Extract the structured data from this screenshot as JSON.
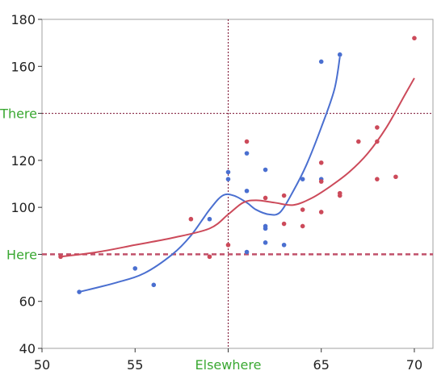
{
  "chart_data": {
    "type": "scatter",
    "xlim": [
      50,
      71
    ],
    "ylim": [
      40,
      180
    ],
    "x_ticks": [
      50,
      55,
      60,
      65,
      70
    ],
    "x_tick_labels": [
      "50",
      "55",
      "Elsewhere",
      "65",
      "70"
    ],
    "y_ticks": [
      40,
      60,
      80,
      100,
      120,
      140,
      160,
      180
    ],
    "y_tick_labels": [
      "40",
      "60",
      "Here",
      "100",
      "120",
      "There",
      "160",
      "180"
    ],
    "highlighted_tick_color": "#3aa832",
    "grid": false,
    "reference_lines": [
      {
        "axis": "x",
        "value": 60,
        "style": "dotted",
        "color": "#7a0e2e"
      },
      {
        "axis": "y",
        "value": 140,
        "style": "dotted",
        "color": "#7a0e2e"
      },
      {
        "axis": "y",
        "value": 80,
        "style": "dashed",
        "color": "#c0506a"
      }
    ],
    "series": [
      {
        "color": "#4a6fd0",
        "points": [
          [
            52,
            64
          ],
          [
            55,
            74
          ],
          [
            56,
            67
          ],
          [
            59,
            95
          ],
          [
            60,
            115
          ],
          [
            60,
            112
          ],
          [
            61,
            123
          ],
          [
            61,
            107
          ],
          [
            61,
            81
          ],
          [
            62,
            116
          ],
          [
            62,
            92
          ],
          [
            62,
            91
          ],
          [
            62,
            85
          ],
          [
            63,
            84
          ],
          [
            64,
            112
          ],
          [
            65,
            162
          ],
          [
            65,
            112
          ],
          [
            66,
            165
          ]
        ],
        "curve": [
          [
            52,
            64
          ],
          [
            54,
            68
          ],
          [
            55.5,
            72
          ],
          [
            57,
            80
          ],
          [
            58,
            88
          ],
          [
            59,
            99
          ],
          [
            59.7,
            105
          ],
          [
            60.3,
            105
          ],
          [
            61,
            102
          ],
          [
            61.5,
            99
          ],
          [
            62.2,
            97
          ],
          [
            62.8,
            98
          ],
          [
            63.5,
            107
          ],
          [
            64.2,
            118
          ],
          [
            65,
            134
          ],
          [
            65.7,
            150
          ],
          [
            66,
            164
          ]
        ]
      },
      {
        "color": "#cc4a5a",
        "points": [
          [
            51,
            79
          ],
          [
            58,
            95
          ],
          [
            59,
            79
          ],
          [
            60,
            84
          ],
          [
            61,
            128
          ],
          [
            62,
            104
          ],
          [
            63,
            105
          ],
          [
            63,
            93
          ],
          [
            64,
            99
          ],
          [
            64,
            92
          ],
          [
            65,
            119
          ],
          [
            65,
            111
          ],
          [
            65,
            98
          ],
          [
            66,
            106
          ],
          [
            66,
            105
          ],
          [
            67,
            128
          ],
          [
            68,
            134
          ],
          [
            68,
            128
          ],
          [
            68,
            112
          ],
          [
            69,
            113
          ],
          [
            70,
            172
          ]
        ],
        "curve": [
          [
            51,
            79
          ],
          [
            53,
            81
          ],
          [
            55,
            84
          ],
          [
            57,
            87
          ],
          [
            59,
            91
          ],
          [
            60,
            97
          ],
          [
            60.8,
            102
          ],
          [
            61.5,
            103
          ],
          [
            62.5,
            102
          ],
          [
            63.5,
            101
          ],
          [
            64.5,
            104
          ],
          [
            65.5,
            109
          ],
          [
            66.5,
            115
          ],
          [
            67.5,
            123
          ],
          [
            68.5,
            134
          ],
          [
            69.5,
            148
          ],
          [
            70,
            155
          ]
        ]
      }
    ]
  }
}
